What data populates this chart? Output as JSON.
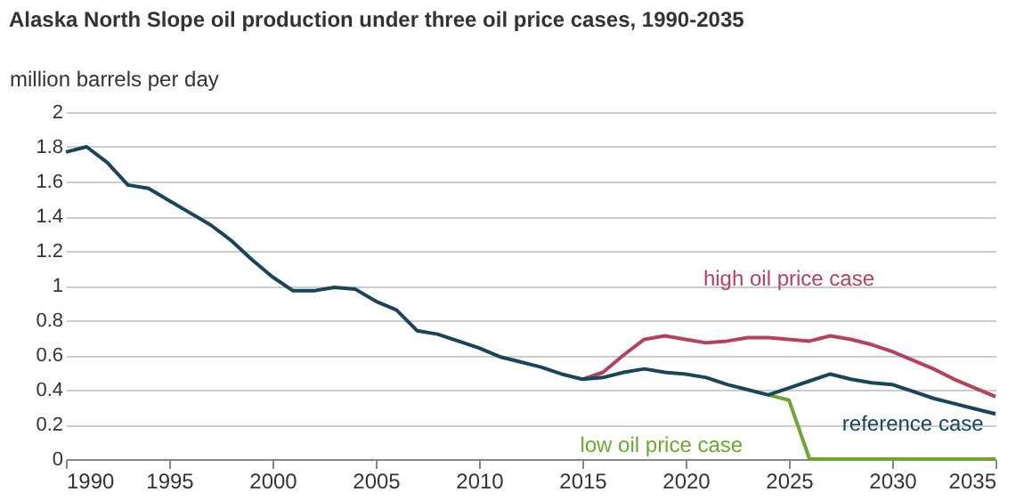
{
  "chart_data": {
    "type": "line",
    "title": "Alaska North Slope oil production under three oil price cases, 1990-2035",
    "ylabel": "million barrels per day",
    "xlim": [
      1990,
      2035
    ],
    "xticks": [
      1990,
      1995,
      2000,
      2005,
      2010,
      2015,
      2020,
      2025,
      2030,
      2035
    ],
    "ylim": [
      0,
      2
    ],
    "yticks": [
      0,
      0.2,
      0.4,
      0.6,
      0.8,
      1,
      1.2,
      1.4,
      1.6,
      1.8,
      2
    ],
    "grid": "y",
    "legend": false,
    "series": [
      {
        "name": "high oil price case",
        "color": "#b5415d",
        "x": [
          2015,
          2016,
          2017,
          2018,
          2019,
          2020,
          2021,
          2022,
          2023,
          2024,
          2025,
          2026,
          2027,
          2028,
          2029,
          2030,
          2031,
          2032,
          2033,
          2034,
          2035
        ],
        "values": [
          0.46,
          0.5,
          0.6,
          0.69,
          0.71,
          0.69,
          0.67,
          0.68,
          0.7,
          0.7,
          0.69,
          0.68,
          0.71,
          0.69,
          0.66,
          0.62,
          0.57,
          0.52,
          0.46,
          0.41,
          0.36
        ]
      },
      {
        "name": "low oil price case",
        "color": "#6aa832",
        "x": [
          2024,
          2025,
          2026,
          2027,
          2028,
          2029,
          2030,
          2031,
          2032,
          2033,
          2034,
          2035
        ],
        "values": [
          0.37,
          0.34,
          0,
          0,
          0,
          0,
          0,
          0,
          0,
          0,
          0,
          0
        ]
      },
      {
        "name": "reference case",
        "color": "#17455c",
        "x": [
          1990,
          1991,
          1992,
          1993,
          1994,
          1995,
          1996,
          1997,
          1998,
          1999,
          2000,
          2001,
          2002,
          2003,
          2004,
          2005,
          2006,
          2007,
          2008,
          2009,
          2010,
          2011,
          2012,
          2013,
          2014,
          2015,
          2016,
          2017,
          2018,
          2019,
          2020,
          2021,
          2022,
          2023,
          2024,
          2025,
          2026,
          2027,
          2028,
          2029,
          2030,
          2031,
          2032,
          2033,
          2034,
          2035
        ],
        "values": [
          1.77,
          1.8,
          1.71,
          1.58,
          1.56,
          1.49,
          1.42,
          1.35,
          1.26,
          1.15,
          1.05,
          0.97,
          0.97,
          0.99,
          0.98,
          0.91,
          0.86,
          0.74,
          0.72,
          0.68,
          0.64,
          0.59,
          0.56,
          0.53,
          0.49,
          0.46,
          0.47,
          0.5,
          0.52,
          0.5,
          0.49,
          0.47,
          0.43,
          0.4,
          0.37,
          0.41,
          0.45,
          0.49,
          0.46,
          0.44,
          0.43,
          0.39,
          0.35,
          0.32,
          0.29,
          0.26
        ]
      }
    ]
  }
}
